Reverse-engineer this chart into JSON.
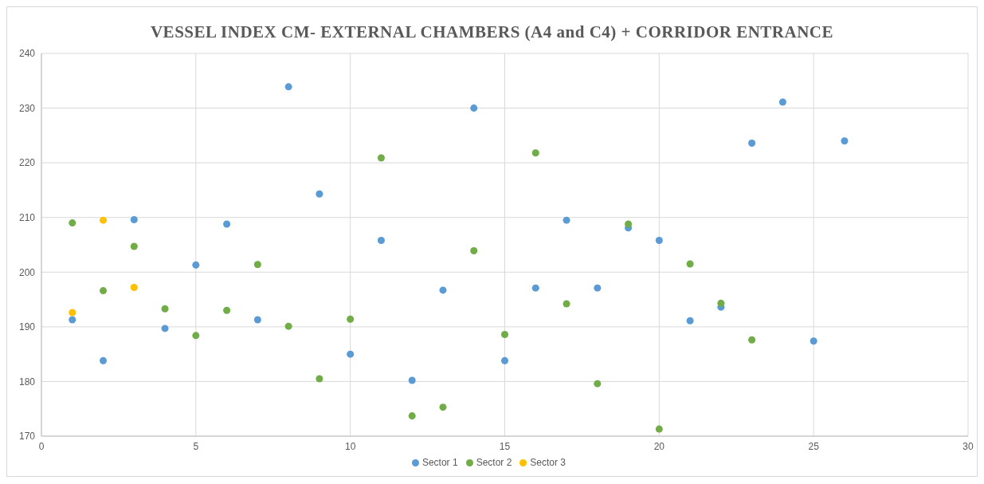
{
  "chart_data": {
    "type": "scatter",
    "title": "VESSEL INDEX CM- EXTERNAL CHAMBERS (A4 and C4) + CORRIDOR ENTRANCE",
    "xlim": [
      0,
      30
    ],
    "xticks": [
      0,
      5,
      10,
      15,
      20,
      25,
      30
    ],
    "ylim": [
      170,
      240
    ],
    "yticks": [
      170,
      180,
      190,
      200,
      210,
      220,
      230,
      240
    ],
    "grid": true,
    "legend": "bottom",
    "marker": "circle",
    "series": [
      {
        "name": "Sector 1",
        "color": "#5b9bd5",
        "x": [
          1,
          2,
          3,
          4,
          5,
          6,
          7,
          8,
          9,
          10,
          11,
          12,
          13,
          14,
          15,
          16,
          17,
          18,
          19,
          20,
          21,
          22,
          23,
          24,
          25,
          26
        ],
        "values": [
          191.3,
          183.8,
          209.6,
          189.7,
          201.3,
          208.8,
          191.3,
          233.9,
          214.3,
          185,
          205.8,
          180.2,
          196.7,
          230,
          183.8,
          197.1,
          209.5,
          197.1,
          208.1,
          205.8,
          191.1,
          193.6,
          223.6,
          231.1,
          187.4,
          224
        ]
      },
      {
        "name": "Sector 2",
        "color": "#70ad47",
        "x": [
          1,
          2,
          3,
          4,
          5,
          6,
          7,
          8,
          9,
          10,
          11,
          12,
          13,
          14,
          15,
          16,
          17,
          18,
          19,
          20,
          21,
          22,
          23
        ],
        "values": [
          209,
          196.6,
          204.7,
          193.3,
          188.4,
          193,
          201.4,
          190.1,
          180.5,
          191.4,
          220.9,
          173.7,
          175.3,
          203.9,
          188.6,
          221.8,
          194.2,
          179.6,
          208.8,
          171.3,
          201.5,
          194.3,
          187.6
        ]
      },
      {
        "name": "Sector 3",
        "color": "#ffc000",
        "x": [
          1,
          2,
          3
        ],
        "values": [
          192.6,
          209.5,
          197.2
        ]
      }
    ]
  }
}
